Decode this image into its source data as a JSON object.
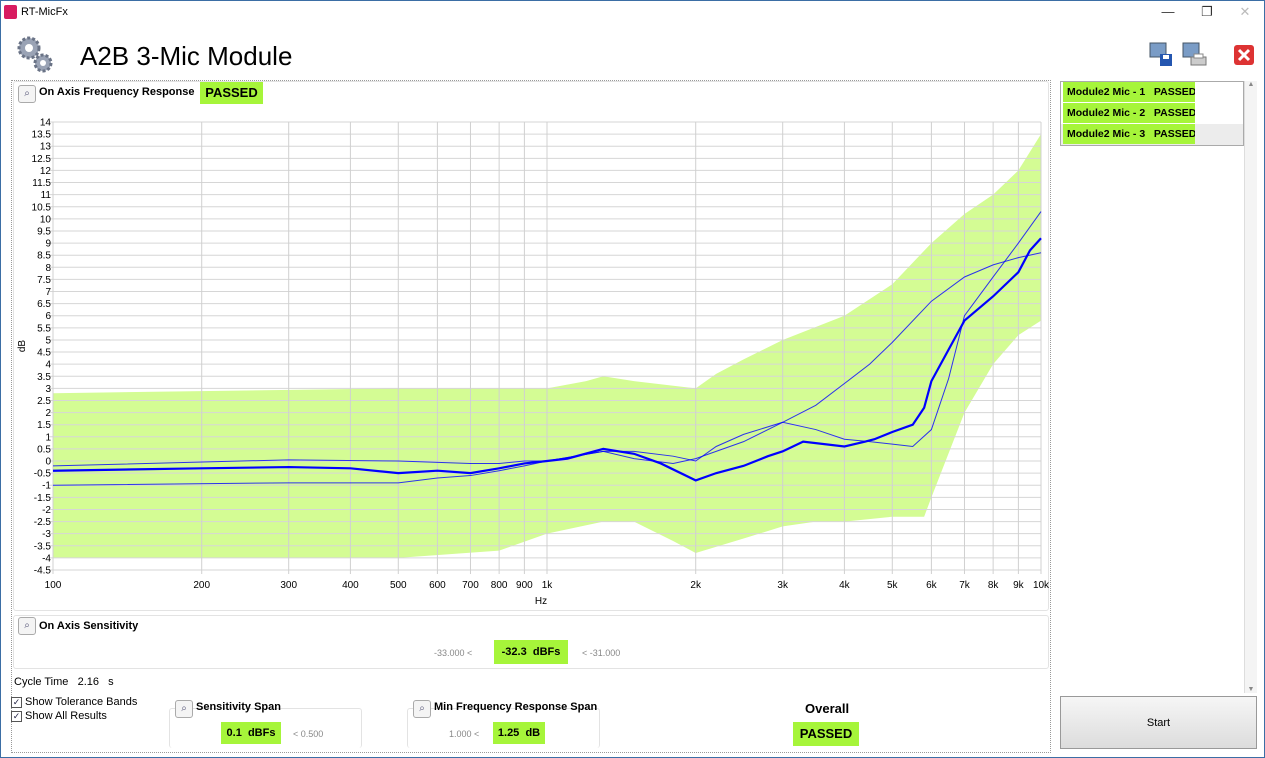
{
  "window": {
    "title": "RT-MicFx",
    "minimize": "—",
    "restore": "❐",
    "close": "✕"
  },
  "header": {
    "title": "A2B 3-Mic Module",
    "icons": [
      "gears-icon",
      "save-icon",
      "print-icon",
      "close-red-icon"
    ]
  },
  "freq_response": {
    "title": "On Axis Frequency Response",
    "status": "PASSED"
  },
  "sensitivity": {
    "title": "On Axis Sensitivity",
    "lower": "-33.000 <",
    "value": "-32.3",
    "unit": "dBFs",
    "upper": "< -31.000"
  },
  "cycle_time": {
    "label": "Cycle Time",
    "value": "2.16",
    "unit": "s"
  },
  "options": {
    "show_tolerance": "Show Tolerance Bands",
    "show_tolerance_checked": true,
    "show_all": "Show All Results",
    "show_all_checked": true
  },
  "sensitivity_span": {
    "title": "Sensitivity Span",
    "value": "0.1",
    "unit": "dBFs",
    "upper": "< 0.500"
  },
  "min_fr_span": {
    "title": "Min Frequency Response Span",
    "lower": "1.000 <",
    "value": "1.25",
    "unit": "dB"
  },
  "overall": {
    "label": "Overall",
    "status": "PASSED"
  },
  "results": [
    {
      "label": "Module2 Mic - 1   PASSED"
    },
    {
      "label": "Module2 Mic - 2   PASSED"
    },
    {
      "label": "Module2 Mic - 3   PASSED"
    }
  ],
  "start_button": "Start",
  "colors": {
    "pass": "#a6f53a",
    "band": "#d4fc94",
    "curve": "#0000ff"
  },
  "chart_data": {
    "type": "line",
    "xlabel": "Hz",
    "ylabel": "dB",
    "xscale": "log",
    "xlim": [
      100,
      10000
    ],
    "ylim": [
      -4.5,
      14
    ],
    "grid": true,
    "xticks": [
      [
        100,
        "100"
      ],
      [
        200,
        "200"
      ],
      [
        300,
        "300"
      ],
      [
        400,
        "400"
      ],
      [
        500,
        "500"
      ],
      [
        600,
        "600"
      ],
      [
        700,
        "700"
      ],
      [
        800,
        "800"
      ],
      [
        900,
        "900"
      ],
      [
        1000,
        "1k"
      ],
      [
        2000,
        "2k"
      ],
      [
        3000,
        "3k"
      ],
      [
        4000,
        "4k"
      ],
      [
        5000,
        "5k"
      ],
      [
        6000,
        "6k"
      ],
      [
        7000,
        "7k"
      ],
      [
        8000,
        "8k"
      ],
      [
        9000,
        "9k"
      ],
      [
        10000,
        "10k"
      ]
    ],
    "tolerance_upper": [
      [
        100,
        2.8
      ],
      [
        500,
        3
      ],
      [
        1000,
        3
      ],
      [
        1200,
        3.3
      ],
      [
        1300,
        3.5
      ],
      [
        1500,
        3.3
      ],
      [
        2000,
        3.0
      ],
      [
        2200,
        3.6
      ],
      [
        2500,
        4.2
      ],
      [
        3000,
        5
      ],
      [
        4000,
        6
      ],
      [
        5000,
        7.3
      ],
      [
        6000,
        9
      ],
      [
        7000,
        10.2
      ],
      [
        8000,
        11
      ],
      [
        9000,
        12
      ],
      [
        10000,
        13.5
      ]
    ],
    "tolerance_lower": [
      [
        100,
        -4
      ],
      [
        500,
        -4
      ],
      [
        800,
        -3.7
      ],
      [
        1000,
        -3
      ],
      [
        1300,
        -2.5
      ],
      [
        1500,
        -2.5
      ],
      [
        1800,
        -3.3
      ],
      [
        2000,
        -3.8
      ],
      [
        2500,
        -3.2
      ],
      [
        3000,
        -2.7
      ],
      [
        3500,
        -2.5
      ],
      [
        4000,
        -2.5
      ],
      [
        5000,
        -2.3
      ],
      [
        5800,
        -2.3
      ],
      [
        6000,
        -1.5
      ],
      [
        7000,
        2
      ],
      [
        8000,
        4
      ],
      [
        9000,
        5.2
      ],
      [
        10000,
        5.8
      ]
    ],
    "series": [
      {
        "width": 2.2,
        "points": [
          [
            100,
            -0.4
          ],
          [
            200,
            -0.3
          ],
          [
            300,
            -0.25
          ],
          [
            400,
            -0.3
          ],
          [
            500,
            -0.5
          ],
          [
            600,
            -0.4
          ],
          [
            700,
            -0.5
          ],
          [
            800,
            -0.3
          ],
          [
            900,
            -0.1
          ],
          [
            1000,
            0
          ],
          [
            1100,
            0.1
          ],
          [
            1300,
            0.5
          ],
          [
            1500,
            0.3
          ],
          [
            1700,
            -0.1
          ],
          [
            2000,
            -0.8
          ],
          [
            2200,
            -0.5
          ],
          [
            2500,
            -0.2
          ],
          [
            2800,
            0.2
          ],
          [
            3000,
            0.4
          ],
          [
            3300,
            0.8
          ],
          [
            4000,
            0.6
          ],
          [
            4400,
            0.8
          ],
          [
            4600,
            0.9
          ],
          [
            5000,
            1.2
          ],
          [
            5500,
            1.5
          ],
          [
            5800,
            2.2
          ],
          [
            6000,
            3.3
          ],
          [
            6500,
            4.6
          ],
          [
            7000,
            5.8
          ],
          [
            8000,
            6.8
          ],
          [
            9000,
            7.8
          ],
          [
            9500,
            8.7
          ],
          [
            10000,
            9.2
          ]
        ]
      },
      {
        "width": 1,
        "points": [
          [
            100,
            -0.2
          ],
          [
            300,
            0.05
          ],
          [
            500,
            0
          ],
          [
            700,
            -0.1
          ],
          [
            800,
            -0.1
          ],
          [
            900,
            0
          ],
          [
            1000,
            0
          ],
          [
            1300,
            0.4
          ],
          [
            1500,
            0.4
          ],
          [
            1800,
            0.2
          ],
          [
            2000,
            0
          ],
          [
            2200,
            0.6
          ],
          [
            2500,
            1.1
          ],
          [
            3000,
            1.6
          ],
          [
            3500,
            2.3
          ],
          [
            4000,
            3.2
          ],
          [
            4500,
            4
          ],
          [
            5000,
            4.9
          ],
          [
            6000,
            6.6
          ],
          [
            7000,
            7.6
          ],
          [
            8000,
            8.1
          ],
          [
            9000,
            8.4
          ],
          [
            10000,
            8.6
          ]
        ]
      },
      {
        "width": 1,
        "points": [
          [
            100,
            -1.0
          ],
          [
            300,
            -0.9
          ],
          [
            500,
            -0.9
          ],
          [
            600,
            -0.7
          ],
          [
            700,
            -0.6
          ],
          [
            800,
            -0.4
          ],
          [
            900,
            -0.2
          ],
          [
            1000,
            0
          ],
          [
            1300,
            0.4
          ],
          [
            1500,
            0.1
          ],
          [
            1800,
            -0.1
          ],
          [
            2000,
            0.1
          ],
          [
            2500,
            0.8
          ],
          [
            3000,
            1.6
          ],
          [
            3500,
            1.3
          ],
          [
            4000,
            0.9
          ],
          [
            4500,
            0.8
          ],
          [
            5000,
            0.7
          ],
          [
            5500,
            0.6
          ],
          [
            6000,
            1.3
          ],
          [
            6500,
            3.4
          ],
          [
            7000,
            6
          ],
          [
            8000,
            7.6
          ],
          [
            9000,
            9.0
          ],
          [
            10000,
            10.3
          ]
        ]
      }
    ]
  }
}
